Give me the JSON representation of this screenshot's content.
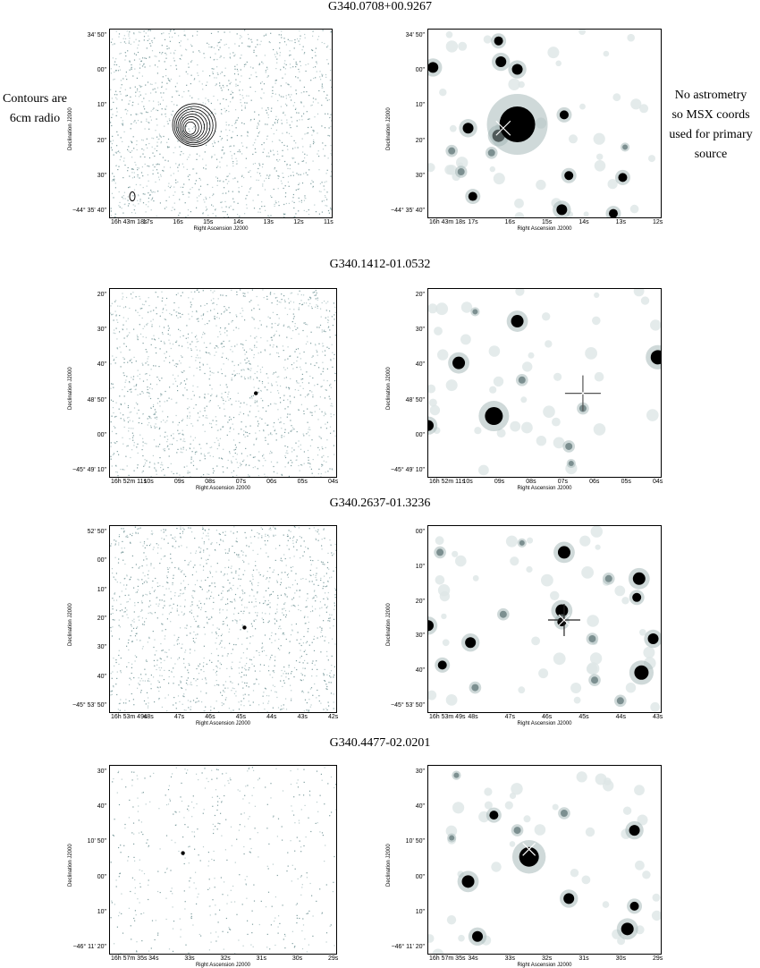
{
  "left_note": {
    "line1": "Contours are",
    "line2": "6cm radio"
  },
  "right_note": {
    "line1": "No astrometry",
    "line2": "so MSX coords",
    "line3": "used for primary",
    "line4": "source"
  },
  "rows": [
    {
      "title": "G340.0708+00.9267",
      "axis": {
        "ylabel": "Declination J2000",
        "xlabel": "Right Ascension J2000"
      },
      "left": {
        "yticks": [
          "34' 50\"",
          "00\"",
          "10\"",
          "20\"",
          "30\"",
          "−44° 35' 40\""
        ],
        "xticks": [
          "16h 43m 18s",
          "17s",
          "16s",
          "15s",
          "14s",
          "13s",
          "12s",
          "11s"
        ],
        "contours": true,
        "beam": true
      },
      "right": {
        "yticks": [
          "34' 50\"",
          "00\"",
          "10\"",
          "20\"",
          "30\"",
          "−44° 35' 40\""
        ],
        "xticks": [
          "16h 43m 18s",
          "17s",
          "16s",
          "15s",
          "14s",
          "13s",
          "12s"
        ],
        "stars": [
          {
            "x": 0.02,
            "y": 0.2,
            "r": 6
          },
          {
            "x": 0.3,
            "y": 0.06,
            "r": 5
          },
          {
            "x": 0.31,
            "y": 0.17,
            "r": 6
          },
          {
            "x": 0.38,
            "y": 0.21,
            "r": 6
          },
          {
            "x": 0.17,
            "y": 0.52,
            "r": 6
          },
          {
            "x": 0.3,
            "y": 0.56,
            "r": 7
          },
          {
            "x": 0.38,
            "y": 0.5,
            "r": 20
          },
          {
            "x": 0.58,
            "y": 0.45,
            "r": 5
          },
          {
            "x": 0.6,
            "y": 0.77,
            "r": 5
          },
          {
            "x": 0.83,
            "y": 0.78,
            "r": 5
          },
          {
            "x": 0.19,
            "y": 0.88,
            "r": 5
          },
          {
            "x": 0.57,
            "y": 0.95,
            "r": 6
          },
          {
            "x": 0.79,
            "y": 0.97,
            "r": 5
          },
          {
            "x": 0.1,
            "y": 0.64,
            "r": 4
          },
          {
            "x": 0.14,
            "y": 0.75,
            "r": 4
          },
          {
            "x": 0.84,
            "y": 0.62,
            "r": 3
          },
          {
            "x": 0.27,
            "y": 0.65,
            "r": 4
          }
        ],
        "cross": {
          "x": 0.32,
          "y": 0.52,
          "size": 16,
          "color": "#ffffff",
          "style": "x"
        }
      }
    },
    {
      "title": "G340.1412-01.0532",
      "axis": {
        "ylabel": "Declination J2000",
        "xlabel": "Right Ascension J2000"
      },
      "left": {
        "yticks": [
          "20\"",
          "30\"",
          "40\"",
          "48' 50\"",
          "00\"",
          "−45° 49' 10\""
        ],
        "xticks": [
          "16h 52m 11s",
          "10s",
          "09s",
          "08s",
          "07s",
          "06s",
          "05s",
          "04s"
        ],
        "source": {
          "x": 0.64,
          "y": 0.55
        }
      },
      "right": {
        "yticks": [
          "20\"",
          "30\"",
          "40\"",
          "48' 50\"",
          "00\"",
          "−45° 49' 10\""
        ],
        "xticks": [
          "16h 52m 11s",
          "10s",
          "09s",
          "08s",
          "07s",
          "06s",
          "05s",
          "04s"
        ],
        "stars": [
          {
            "x": 0.38,
            "y": 0.17,
            "r": 7
          },
          {
            "x": 0.13,
            "y": 0.39,
            "r": 7
          },
          {
            "x": 0.98,
            "y": 0.36,
            "r": 8
          },
          {
            "x": 0.28,
            "y": 0.67,
            "r": 10
          },
          {
            "x": 0.0,
            "y": 0.72,
            "r": 6
          },
          {
            "x": 0.66,
            "y": 0.63,
            "r": 4
          },
          {
            "x": 0.6,
            "y": 0.83,
            "r": 4
          },
          {
            "x": 0.61,
            "y": 0.92,
            "r": 3
          },
          {
            "x": 0.4,
            "y": 0.48,
            "r": 4
          },
          {
            "x": 0.2,
            "y": 0.12,
            "r": 3
          }
        ],
        "cross": {
          "x": 0.66,
          "y": 0.55,
          "size": 20,
          "color": "#555555",
          "style": "plus"
        }
      }
    },
    {
      "title": "G340.2637-01.3236",
      "axis": {
        "ylabel": "Declination J2000",
        "xlabel": "Right Ascension J2000"
      },
      "left": {
        "yticks": [
          "52' 50\"",
          "00\"",
          "10\"",
          "20\"",
          "30\"",
          "40\"",
          "−45° 53' 50\""
        ],
        "xticks": [
          "16h 53m 49s",
          "48s",
          "47s",
          "46s",
          "45s",
          "44s",
          "43s",
          "42s"
        ],
        "source": {
          "x": 0.59,
          "y": 0.54
        }
      },
      "right": {
        "yticks": [
          "00\"",
          "10\"",
          "20\"",
          "30\"",
          "40\"",
          "−45° 53' 50\""
        ],
        "xticks": [
          "16h 53m 49s",
          "48s",
          "47s",
          "46s",
          "45s",
          "44s",
          "43s"
        ],
        "stars": [
          {
            "x": 0.58,
            "y": 0.14,
            "r": 7
          },
          {
            "x": 0.9,
            "y": 0.28,
            "r": 7
          },
          {
            "x": 0.89,
            "y": 0.38,
            "r": 5
          },
          {
            "x": 0.57,
            "y": 0.45,
            "r": 7
          },
          {
            "x": 0.57,
            "y": 0.51,
            "r": 5
          },
          {
            "x": 0.0,
            "y": 0.53,
            "r": 6
          },
          {
            "x": 0.18,
            "y": 0.62,
            "r": 6
          },
          {
            "x": 0.96,
            "y": 0.6,
            "r": 6
          },
          {
            "x": 0.91,
            "y": 0.78,
            "r": 8
          },
          {
            "x": 0.06,
            "y": 0.74,
            "r": 5
          },
          {
            "x": 0.71,
            "y": 0.82,
            "r": 4
          },
          {
            "x": 0.82,
            "y": 0.93,
            "r": 4
          },
          {
            "x": 0.2,
            "y": 0.86,
            "r": 4
          },
          {
            "x": 0.32,
            "y": 0.47,
            "r": 4
          },
          {
            "x": 0.77,
            "y": 0.28,
            "r": 4
          },
          {
            "x": 0.05,
            "y": 0.14,
            "r": 4
          },
          {
            "x": 0.4,
            "y": 0.09,
            "r": 3
          },
          {
            "x": 0.7,
            "y": 0.6,
            "r": 4
          }
        ],
        "cross": {
          "x": 0.58,
          "y": 0.5,
          "size": 18,
          "color": "#222222",
          "style": "plus"
        }
      }
    },
    {
      "title": "G340.4477-02.0201",
      "axis": {
        "ylabel": "Declination J2000",
        "xlabel": "Right Ascension J2000"
      },
      "left": {
        "yticks": [
          "30\"",
          "40\"",
          "10' 50\"",
          "00\"",
          "10\"",
          "−46° 11' 20\""
        ],
        "xticks": [
          "16h 57m 35s",
          "34s",
          "33s",
          "32s",
          "31s",
          "30s",
          "29s"
        ],
        "source": {
          "x": 0.32,
          "y": 0.46
        }
      },
      "right": {
        "yticks": [
          "30\"",
          "40\"",
          "10' 50\"",
          "00\"",
          "10\"",
          "−46° 11' 20\""
        ],
        "xticks": [
          "16h 57m 35s",
          "34s",
          "33s",
          "32s",
          "31s",
          "30s",
          "29s"
        ],
        "stars": [
          {
            "x": 0.43,
            "y": 0.48,
            "r": 11
          },
          {
            "x": 0.17,
            "y": 0.61,
            "r": 7
          },
          {
            "x": 0.6,
            "y": 0.7,
            "r": 6
          },
          {
            "x": 0.88,
            "y": 0.34,
            "r": 6
          },
          {
            "x": 0.85,
            "y": 0.86,
            "r": 7
          },
          {
            "x": 0.21,
            "y": 0.9,
            "r": 6
          },
          {
            "x": 0.28,
            "y": 0.26,
            "r": 5
          },
          {
            "x": 0.88,
            "y": 0.74,
            "r": 5
          },
          {
            "x": 0.58,
            "y": 0.25,
            "r": 4
          },
          {
            "x": 0.38,
            "y": 0.34,
            "r": 4
          },
          {
            "x": 0.1,
            "y": 0.38,
            "r": 3
          },
          {
            "x": 0.12,
            "y": 0.05,
            "r": 3
          }
        ],
        "cross": {
          "x": 0.43,
          "y": 0.44,
          "size": 14,
          "color": "#ffffff",
          "style": "x"
        }
      }
    }
  ]
}
